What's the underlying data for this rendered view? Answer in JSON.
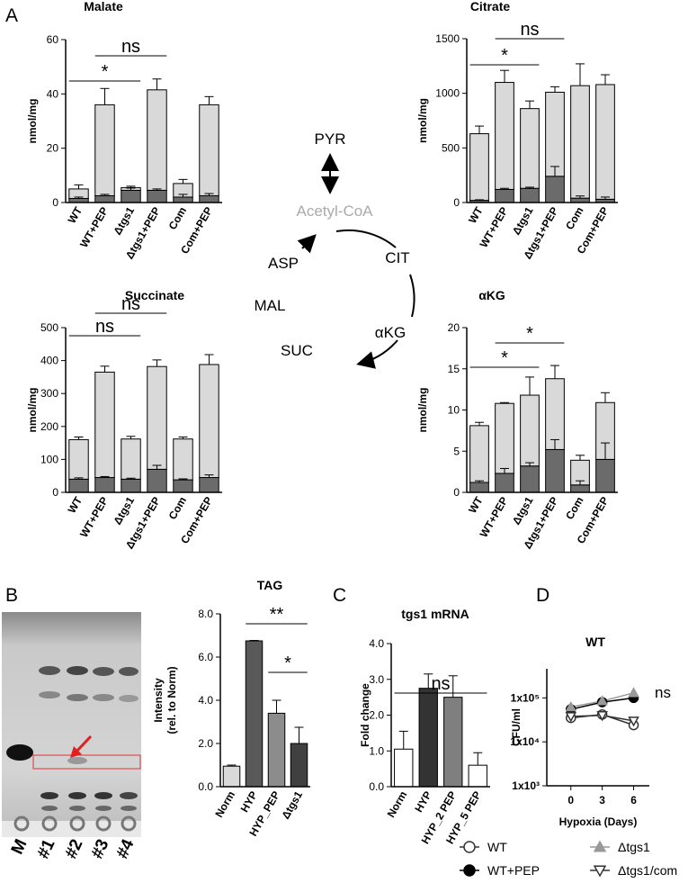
{
  "panel_labels": [
    "A",
    "B",
    "C",
    "D"
  ],
  "pathway": {
    "labels": [
      "PYR",
      "Acetyl-CoA",
      "CIT",
      "αKG",
      "SUC",
      "MAL",
      "ASP"
    ]
  },
  "gel": {
    "lane_labels": [
      "M",
      "#1",
      "#2",
      "#3",
      "#4"
    ]
  },
  "chart_data": [
    {
      "type": "bar",
      "stacked": true,
      "title": "Malate",
      "y_label": "nmol/mg",
      "categories": [
        "WT",
        "WT+PEP",
        "Δtgs1",
        "Δtgs1+PEP",
        "Com",
        "Com+PEP"
      ],
      "series": [
        {
          "color": "#6b6b6b",
          "values": [
            1.5,
            2.5,
            4.5,
            4.5,
            2,
            2.5
          ],
          "errors": [
            0.5,
            0.5,
            0.8,
            0.5,
            1,
            0.8
          ]
        },
        {
          "color": "#d9d9d9",
          "values": [
            3.5,
            33.5,
            1,
            37,
            5,
            33.5
          ],
          "errors": [
            1.5,
            6,
            0.5,
            4,
            1.5,
            3
          ]
        }
      ],
      "ylim": [
        0,
        60
      ],
      "yticks": [
        0,
        20,
        40,
        60
      ],
      "annotations": [
        "*",
        "ns"
      ]
    },
    {
      "type": "bar",
      "stacked": true,
      "title": "Citrate",
      "y_label": "nmol/mg",
      "categories": [
        "WT",
        "WT+PEP",
        "Δtgs1",
        "Δtgs1+PEP",
        "Com",
        "Com+PEP"
      ],
      "series": [
        {
          "color": "#6b6b6b",
          "values": [
            20,
            120,
            130,
            240,
            40,
            30
          ],
          "errors": [
            5,
            10,
            10,
            90,
            20,
            20
          ]
        },
        {
          "color": "#d9d9d9",
          "values": [
            610,
            980,
            730,
            770,
            1030,
            1050
          ],
          "errors": [
            70,
            110,
            70,
            50,
            200,
            90
          ]
        }
      ],
      "ylim": [
        0,
        1500
      ],
      "yticks": [
        0,
        500,
        1000,
        1500
      ],
      "annotations": [
        "*",
        "ns"
      ]
    },
    {
      "type": "bar",
      "stacked": true,
      "title": "Succinate",
      "y_label": "nmol/mg",
      "categories": [
        "WT",
        "WT+PEP",
        "Δtgs1",
        "Δtgs1+PEP",
        "Com",
        "Com+PEP"
      ],
      "series": [
        {
          "color": "#6b6b6b",
          "values": [
            40,
            45,
            40,
            70,
            38,
            45
          ],
          "errors": [
            4,
            3,
            3,
            12,
            3,
            8
          ]
        },
        {
          "color": "#d9d9d9",
          "values": [
            120,
            320,
            122,
            312,
            124,
            343
          ],
          "errors": [
            8,
            18,
            8,
            20,
            6,
            30
          ]
        }
      ],
      "ylim": [
        0,
        500
      ],
      "yticks": [
        0,
        100,
        200,
        300,
        400,
        500
      ],
      "annotations": [
        "ns",
        "ns"
      ]
    },
    {
      "type": "bar",
      "stacked": true,
      "title": "αKG",
      "y_label": "nmol/mg",
      "categories": [
        "WT",
        "WT+PEP",
        "Δtgs1",
        "Δtgs1+PEP",
        "Com",
        "Com+PEP"
      ],
      "series": [
        {
          "color": "#6b6b6b",
          "values": [
            1.2,
            2.3,
            3.2,
            5.2,
            0.9,
            4.0
          ],
          "errors": [
            0.2,
            0.6,
            0.4,
            1.2,
            0.5,
            2.0
          ]
        },
        {
          "color": "#d9d9d9",
          "values": [
            6.9,
            8.5,
            8.6,
            8.6,
            3.0,
            6.9
          ],
          "errors": [
            0.4,
            0.1,
            2.2,
            1.6,
            0.6,
            1.2
          ]
        }
      ],
      "ylim": [
        0,
        20
      ],
      "yticks": [
        0,
        5,
        10,
        15,
        20
      ],
      "annotations": [
        "*",
        "*"
      ]
    },
    {
      "type": "bar",
      "title": "TAG",
      "y_label": [
        "Intensity",
        "(rel. to Norm)"
      ],
      "categories": [
        "Norm",
        "HYP",
        "HYP_PEP",
        "Δtgs1"
      ],
      "values": [
        0.95,
        6.75,
        3.4,
        2.0
      ],
      "errors": [
        0.05,
        0.02,
        0.6,
        0.75
      ],
      "colors": [
        "#d9d9d9",
        "#595959",
        "#8c8c8c",
        "#404040"
      ],
      "ylim": [
        0,
        8
      ],
      "yticks": [
        {
          "value": 0,
          "label": "0.0"
        },
        {
          "value": 2,
          "label": "2.0"
        },
        {
          "value": 4,
          "label": "4.0"
        },
        {
          "value": 6,
          "label": "6.0"
        },
        {
          "value": 8,
          "label": "8.0"
        }
      ],
      "annotations": [
        "**",
        "*"
      ]
    },
    {
      "type": "bar",
      "title": "tgs1 mRNA",
      "y_label": "Fold change",
      "categories": [
        "Norm",
        "HYP",
        "HYP_2 PEP",
        "HYP_5 PEP"
      ],
      "values": [
        1.05,
        2.75,
        2.5,
        0.6
      ],
      "errors": [
        0.5,
        0.4,
        0.6,
        0.35
      ],
      "colors": [
        "#ffffff",
        "#333333",
        "#7f7f7f",
        "#ffffff"
      ],
      "ylim": [
        0,
        4
      ],
      "yticks": [
        {
          "value": 0,
          "label": "0.0"
        },
        {
          "value": 1,
          "label": "1.0"
        },
        {
          "value": 2,
          "label": "2.0"
        },
        {
          "value": 3,
          "label": "3.0"
        },
        {
          "value": 4,
          "label": "4.0"
        }
      ],
      "annotations": [
        "ns"
      ]
    },
    {
      "type": "line",
      "title": "WT",
      "x_label": "Hypoxia (Days)",
      "y_label": "CFU/ml",
      "log_y": true,
      "x": [
        0,
        3,
        6
      ],
      "xlim": [
        -2.3,
        7.5
      ],
      "xticks": [
        0,
        3,
        6
      ],
      "ylim": [
        1000,
        460000
      ],
      "yticks": [
        {
          "value": 1000,
          "label": "1x10³"
        },
        {
          "value": 10000,
          "label": "1x10⁴"
        },
        {
          "value": 100000,
          "label": "1x10⁵"
        }
      ],
      "series": [
        {
          "name": "WT",
          "color": "#333333",
          "fill": "#ffffff",
          "marker": "circle",
          "values": [
            35000,
            42000,
            24000
          ]
        },
        {
          "name": "WT+PEP",
          "color": "#000000",
          "fill": "#000000",
          "marker": "circle",
          "values": [
            55000,
            80000,
            100000
          ]
        },
        {
          "name": "Δtgs1",
          "color": "#999999",
          "fill": "#999999",
          "marker": "triangle",
          "values": [
            62000,
            85000,
            130000
          ]
        },
        {
          "name": "Δtgs1/com",
          "color": "#333333",
          "fill": "#ffffff",
          "marker": "triangle-down",
          "values": [
            38000,
            40000,
            30000
          ]
        }
      ],
      "legend": "bottom",
      "annotations": [
        "ns"
      ]
    }
  ]
}
